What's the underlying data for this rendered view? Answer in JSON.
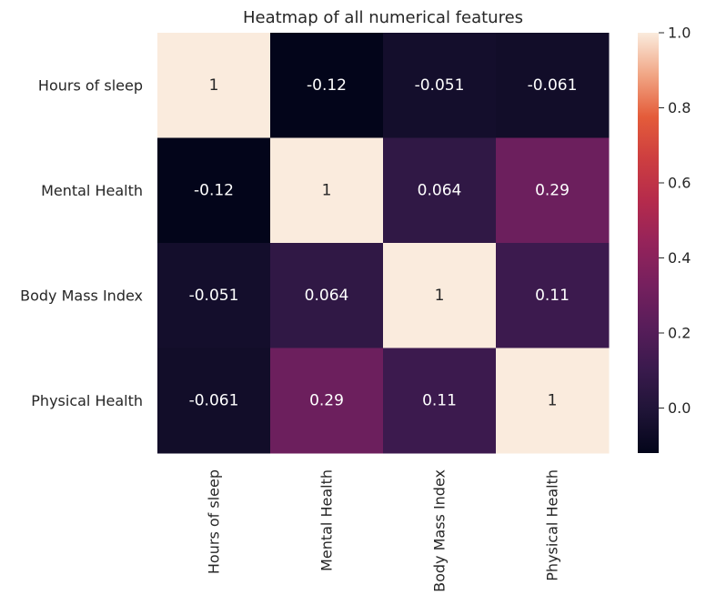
{
  "chart_data": {
    "type": "heatmap",
    "title": "Heatmap of all numerical features",
    "row_labels": [
      "Hours of sleep",
      "Mental Health",
      "Body Mass Index",
      "Physical Health"
    ],
    "col_labels": [
      "Hours of sleep",
      "Mental Health",
      "Body Mass Index",
      "Physical Health"
    ],
    "values": [
      [
        1,
        -0.12,
        -0.051,
        -0.061
      ],
      [
        -0.12,
        1,
        0.064,
        0.29
      ],
      [
        -0.051,
        0.064,
        1,
        0.11
      ],
      [
        -0.061,
        0.29,
        0.11,
        1
      ]
    ],
    "annotations": [
      [
        "1",
        "-0.12",
        "-0.051",
        "-0.061"
      ],
      [
        "-0.12",
        "1",
        "0.064",
        "0.29"
      ],
      [
        "-0.051",
        "0.064",
        "1",
        "0.11"
      ],
      [
        "-0.061",
        "0.29",
        "0.11",
        "1"
      ]
    ],
    "colormap": "rocket",
    "colorbar": {
      "range": [
        -0.12,
        1.0
      ],
      "ticks": [
        0.0,
        0.2,
        0.4,
        0.6,
        0.8,
        1.0
      ],
      "tick_labels": [
        "0.0",
        "0.2",
        "0.4",
        "0.6",
        "0.8",
        "1.0"
      ]
    }
  }
}
